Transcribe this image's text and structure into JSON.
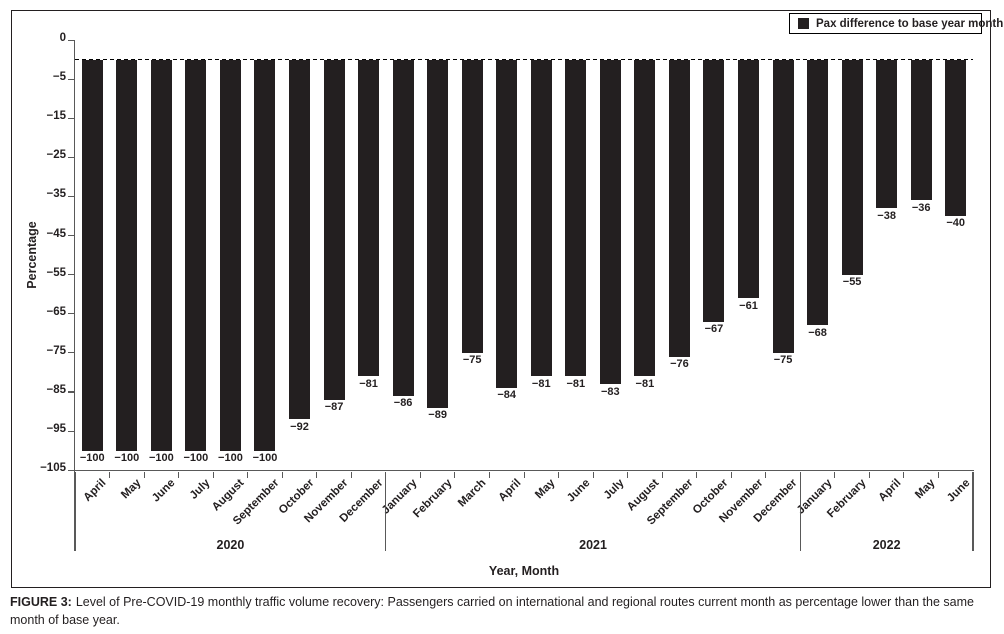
{
  "figure": {
    "caption_label": "FIGURE 3:",
    "caption_text": "Level of Pre-COVID-19 monthly traffic volume recovery: Passengers carried on international and regional routes current month as percentage lower than the same month of base year."
  },
  "chart_data": {
    "type": "bar",
    "title": "",
    "xlabel": "Year, Month",
    "ylabel": "Percentage",
    "legend": [
      "Pax difference to base year month"
    ],
    "legend_position": "top-right",
    "bar_color": "#231f20",
    "axis_color": "#595959",
    "baseline_value": -2.5,
    "grid": false,
    "y_ticks": [
      0,
      -5,
      -15,
      -25,
      -35,
      -45,
      -55,
      -65,
      -75,
      -85,
      -95,
      -105
    ],
    "ylim": [
      0,
      -105
    ],
    "groups": [
      {
        "year": "2020",
        "months": [
          "April",
          "May",
          "June",
          "July",
          "August",
          "September",
          "October",
          "November",
          "December"
        ],
        "values": [
          -100,
          -100,
          -100,
          -100,
          -100,
          -100,
          -92,
          -87,
          -81
        ]
      },
      {
        "year": "2021",
        "months": [
          "January",
          "February",
          "March",
          "April",
          "May",
          "June",
          "July",
          "August",
          "September",
          "October",
          "November",
          "December"
        ],
        "values": [
          -86,
          -89,
          -75,
          -84,
          -81,
          -81,
          -83,
          -81,
          -76,
          -67,
          -61,
          -75
        ]
      },
      {
        "year": "2022",
        "months": [
          "January",
          "February",
          "April",
          "May",
          "June"
        ],
        "values": [
          -68,
          -55,
          -38,
          -36,
          -40
        ]
      }
    ]
  }
}
